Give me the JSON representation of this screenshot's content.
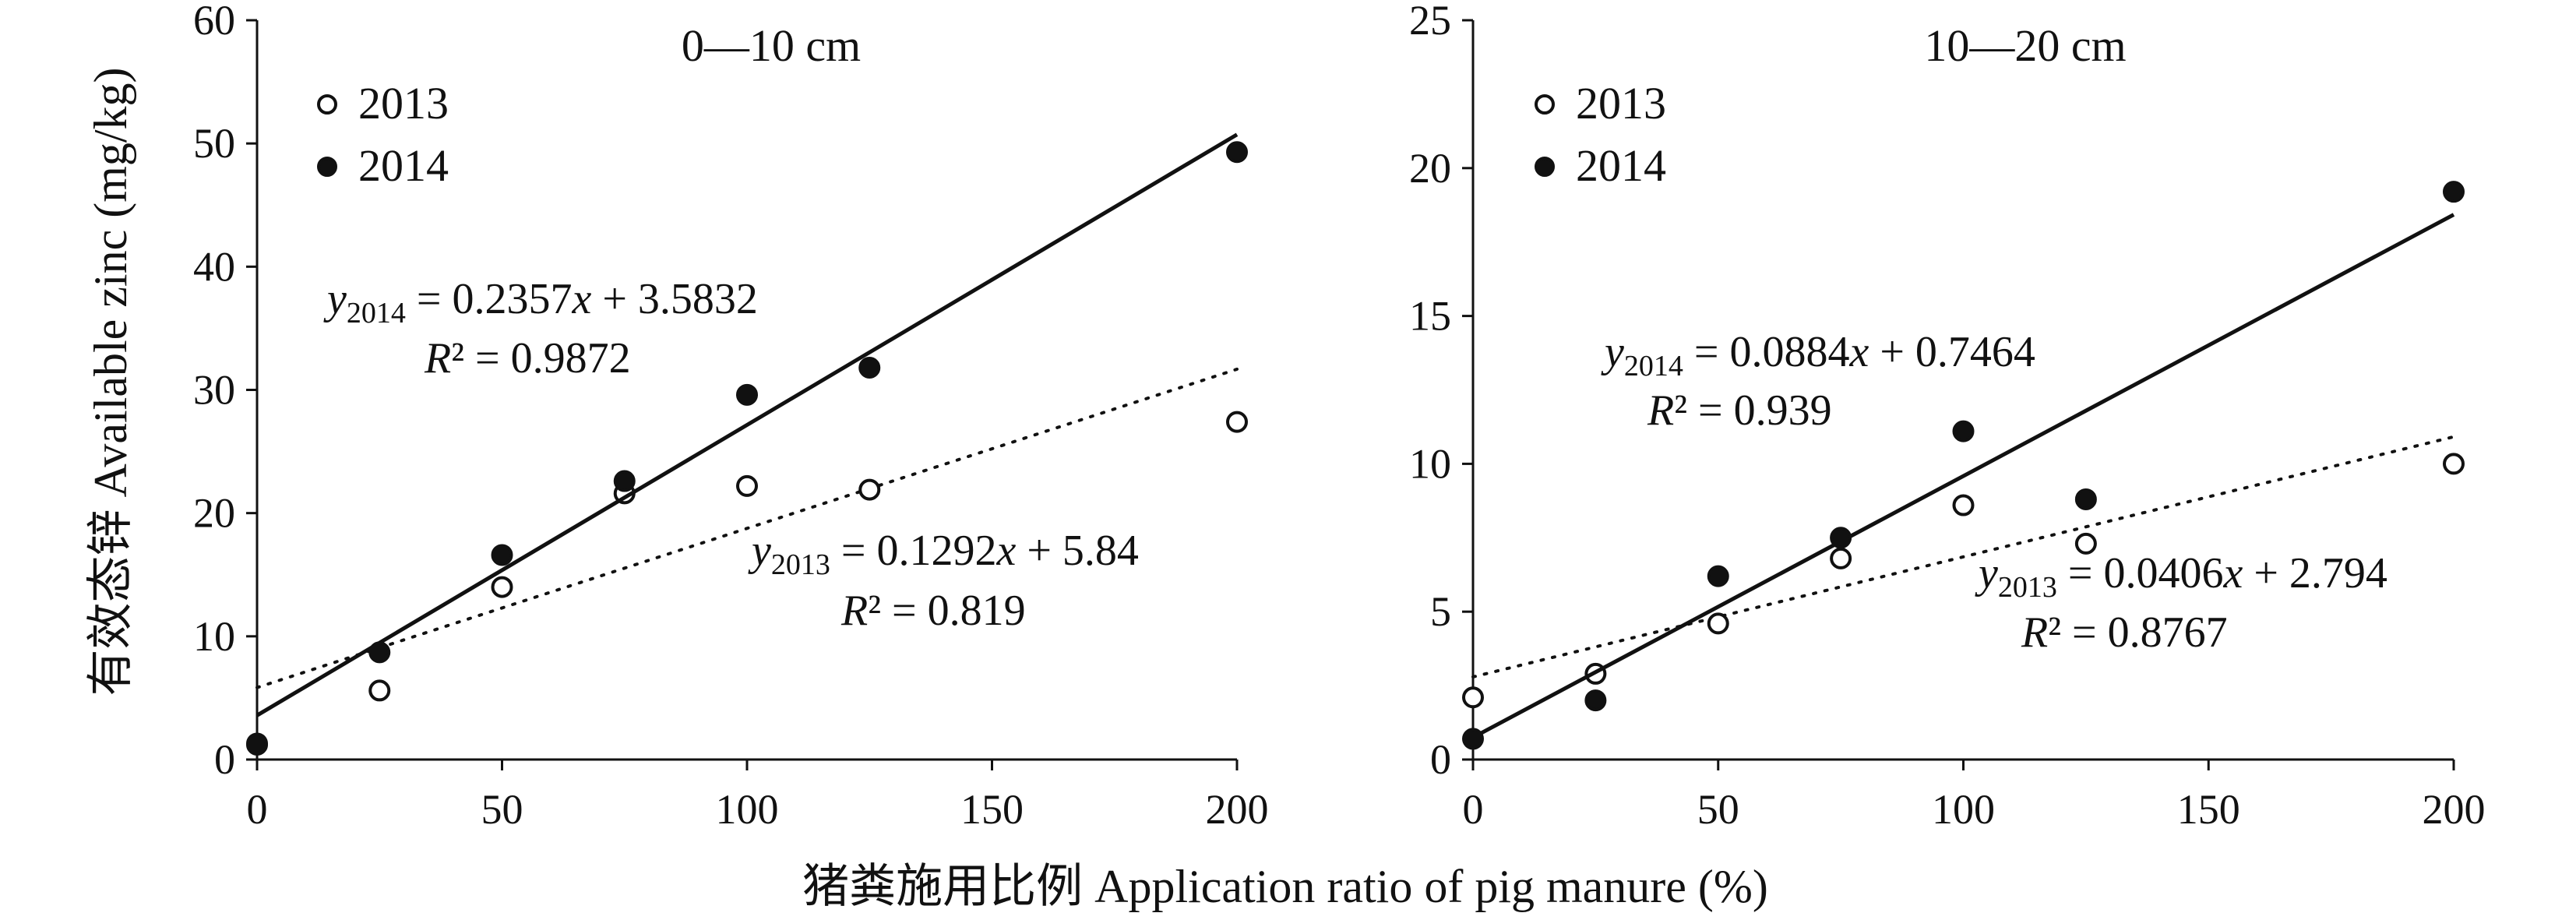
{
  "figure": {
    "shared_xlabel": "猪粪施用比例 Application ratio of pig manure (%)",
    "shared_ylabel": "有效态锌 Available zinc (mg/kg)"
  },
  "chart_data": [
    {
      "type": "scatter",
      "title": "0—10 cm",
      "xlabel": "猪粪施用比例 Application ratio of pig manure (%)",
      "ylabel": "有效态锌 Available zinc (mg/kg)",
      "xlim": [
        0,
        200
      ],
      "ylim": [
        0,
        60
      ],
      "xticks": [
        0,
        50,
        100,
        150,
        200
      ],
      "yticks": [
        0,
        10,
        20,
        30,
        40,
        50,
        60
      ],
      "legend": [
        "2013",
        "2014"
      ],
      "series": [
        {
          "name": "2013",
          "marker": "open-circle",
          "trend_style": "dotted",
          "points": [
            [
              0,
              1.2
            ],
            [
              25,
              5.6
            ],
            [
              50,
              14.0
            ],
            [
              75,
              21.6
            ],
            [
              100,
              22.2
            ],
            [
              125,
              21.9
            ],
            [
              200,
              27.4
            ]
          ],
          "trend": {
            "slope": 0.1292,
            "intercept": 5.84
          },
          "eq_var": "y",
          "eq_sub": "2013",
          "eq_rest": " = 0.1292",
          "eq_x": "x",
          "eq_tail": " + 5.84",
          "r2_text": "R² = 0.819"
        },
        {
          "name": "2014",
          "marker": "filled-circle",
          "trend_style": "solid",
          "points": [
            [
              0,
              1.3
            ],
            [
              25,
              8.7
            ],
            [
              50,
              16.6
            ],
            [
              75,
              22.6
            ],
            [
              100,
              29.6
            ],
            [
              125,
              31.8
            ],
            [
              200,
              49.3
            ]
          ],
          "trend": {
            "slope": 0.2357,
            "intercept": 3.5832
          },
          "eq_var": "y",
          "eq_sub": "2014",
          "eq_rest": " = 0.2357",
          "eq_x": "x",
          "eq_tail": " + 3.5832",
          "r2_text": "R² = 0.9872"
        }
      ]
    },
    {
      "type": "scatter",
      "title": "10—20 cm",
      "xlabel": "猪粪施用比例 Application ratio of pig manure (%)",
      "ylabel": "有效态锌 Available zinc (mg/kg)",
      "xlim": [
        0,
        200
      ],
      "ylim": [
        0,
        25
      ],
      "xticks": [
        0,
        50,
        100,
        150,
        200
      ],
      "yticks": [
        0,
        5,
        10,
        15,
        20,
        25
      ],
      "legend": [
        "2013",
        "2014"
      ],
      "series": [
        {
          "name": "2013",
          "marker": "open-circle",
          "trend_style": "dotted",
          "points": [
            [
              0,
              2.1
            ],
            [
              25,
              2.9
            ],
            [
              50,
              4.6
            ],
            [
              75,
              6.8
            ],
            [
              100,
              8.6
            ],
            [
              125,
              7.3
            ],
            [
              200,
              10.0
            ]
          ],
          "trend": {
            "slope": 0.0406,
            "intercept": 2.794
          },
          "eq_var": "y",
          "eq_sub": "2013",
          "eq_rest": " = 0.0406",
          "eq_x": "x",
          "eq_tail": " + 2.794",
          "r2_text": "R² = 0.8767"
        },
        {
          "name": "2014",
          "marker": "filled-circle",
          "trend_style": "solid",
          "points": [
            [
              0,
              0.7
            ],
            [
              25,
              2.0
            ],
            [
              50,
              6.2
            ],
            [
              75,
              7.5
            ],
            [
              100,
              11.1
            ],
            [
              125,
              8.8
            ],
            [
              200,
              19.2
            ]
          ],
          "trend": {
            "slope": 0.0884,
            "intercept": 0.7464
          },
          "eq_var": "y",
          "eq_sub": "2014",
          "eq_rest": " = 0.0884",
          "eq_x": "x",
          "eq_tail": " + 0.7464",
          "r2_text": "R² = 0.939"
        }
      ]
    }
  ]
}
